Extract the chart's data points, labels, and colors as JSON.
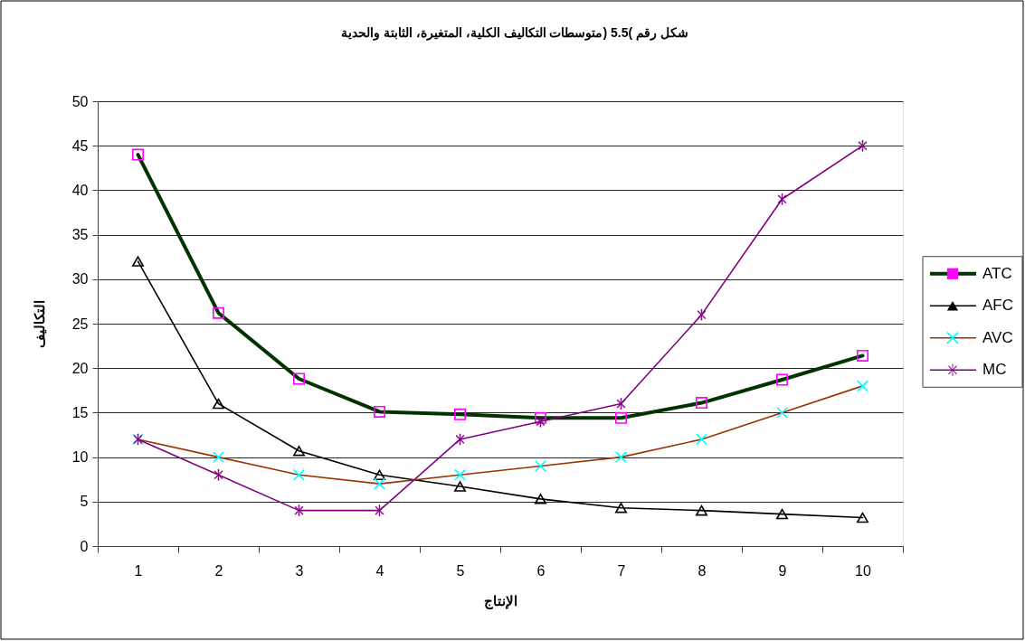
{
  "chart_data": {
    "type": "line",
    "title": "شكل رقم )5.5 (متوسطات التكاليف الكلية، المتغيرة، الثابتة والحدية",
    "xlabel": "الإنتاج",
    "ylabel": "التكاليف",
    "categories": [
      "1",
      "2",
      "3",
      "4",
      "5",
      "6",
      "7",
      "8",
      "9",
      "10"
    ],
    "ylim": [
      0,
      50
    ],
    "yticks": [
      0,
      5,
      10,
      15,
      20,
      25,
      30,
      35,
      40,
      45,
      50
    ],
    "grid": "y",
    "legend": "right",
    "series": [
      {
        "name": "ATC",
        "color": "#003300",
        "colors": [
          "#ff00ff",
          "#ff00ff",
          "#ff00ff",
          "#ff00ff",
          "#ff00ff",
          "#ff00ff",
          "#ff00ff",
          "#ff00ff",
          "#ff00ff",
          "#ff00ff"
        ],
        "marker": "square",
        "values": [
          44,
          26.2,
          18.8,
          15.1,
          14.8,
          14.4,
          14.4,
          16.1,
          18.7,
          21.4
        ]
      },
      {
        "name": "AFC",
        "color": "#000000",
        "colors": [
          "#000000",
          "#000000",
          "#000000",
          "#000000",
          "#000000",
          "#000000",
          "#000000",
          "#000000",
          "#000000",
          "#000000"
        ],
        "marker": "triangle",
        "values": [
          32,
          16,
          10.7,
          8,
          6.7,
          5.3,
          4.3,
          4,
          3.6,
          3.2
        ]
      },
      {
        "name": "AVC",
        "color": "#993300",
        "colors": [
          "#00ffff",
          "#00ffff",
          "#00ffff",
          "#00ffff",
          "#00ffff",
          "#00ffff",
          "#00ffff",
          "#00ffff",
          "#00ffff",
          "#00ffff"
        ],
        "marker": "cross",
        "values": [
          12,
          10,
          8,
          7,
          8,
          9,
          10,
          12,
          15,
          18
        ]
      },
      {
        "name": "MC",
        "color": "#800080",
        "colors": [
          "#800080",
          "#800080",
          "#800080",
          "#800080",
          "#800080",
          "#800080",
          "#800080",
          "#800080",
          "#800080",
          "#800080"
        ],
        "marker": "star",
        "values": [
          12,
          8,
          4,
          4,
          12,
          14,
          16,
          26,
          39,
          45
        ]
      }
    ]
  }
}
